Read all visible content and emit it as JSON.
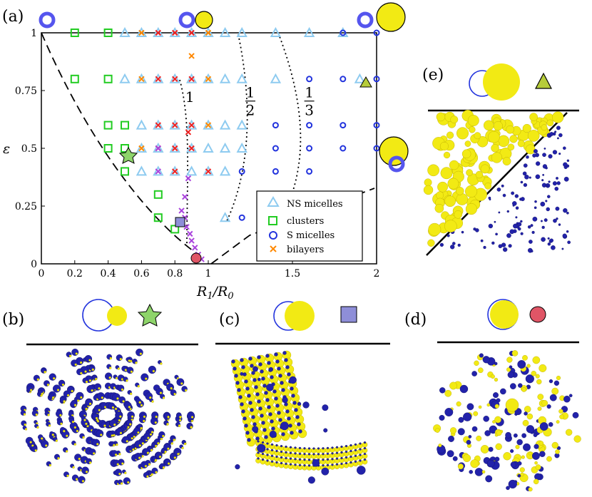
{
  "panels": [
    "(a)",
    "(b)",
    "(c)",
    "(d)",
    "(e)"
  ],
  "colors": {
    "ns": "#8ecbf0",
    "clusters": "#22cc22",
    "s": "#2233dd",
    "bilayers": "#ff8800",
    "cross_red": "#ee2222",
    "cross_purple": "#aa44dd",
    "sphere_yellow": "#f2ea14",
    "sphere_blue": "#2222aa",
    "star": "#8ed46a",
    "square": "#8e8ed8",
    "dot": "#e05566",
    "triangle": "#b6cc3a",
    "ring": "#5555ee"
  },
  "chart_data": {
    "type": "scatter",
    "xlabel": "R_1/R_0",
    "ylabel": "ε",
    "xlim": [
      0,
      2
    ],
    "ylim": [
      0,
      1
    ],
    "xticks": [
      "0",
      "0.2",
      "0.4",
      "0.6",
      "0.8",
      "1",
      "1.5",
      "2"
    ],
    "xtick_values": [
      0,
      0.2,
      0.4,
      0.6,
      0.8,
      1,
      1.5,
      2
    ],
    "yticks": [
      "0",
      "0.25",
      "0.5",
      "0.75",
      "1"
    ],
    "ytick_values": [
      0,
      0.25,
      0.5,
      0.75,
      1
    ],
    "legend": {
      "placement": "bottom-right",
      "entries": [
        "NS micelles",
        "clusters",
        "S micelles",
        "bilayers"
      ]
    },
    "contour_labels": [
      {
        "num": "1",
        "den": "",
        "x": 0.89,
        "y": 0.7
      },
      {
        "num": "1",
        "den": "2",
        "x": 1.25,
        "y": 0.72
      },
      {
        "num": "1",
        "den": "3",
        "x": 1.6,
        "y": 0.72
      }
    ],
    "series": [
      {
        "name": "NS micelles",
        "marker": "triangle",
        "points": [
          [
            0.5,
            1
          ],
          [
            0.6,
            1
          ],
          [
            0.7,
            1
          ],
          [
            0.8,
            1
          ],
          [
            0.9,
            1
          ],
          [
            1,
            1
          ],
          [
            1.1,
            1
          ],
          [
            1.2,
            1
          ],
          [
            1.4,
            1
          ],
          [
            1.6,
            1
          ],
          [
            1.8,
            1
          ],
          [
            0.5,
            0.8
          ],
          [
            0.6,
            0.8
          ],
          [
            0.7,
            0.8
          ],
          [
            0.8,
            0.8
          ],
          [
            0.9,
            0.8
          ],
          [
            1,
            0.8
          ],
          [
            1.1,
            0.8
          ],
          [
            1.2,
            0.8
          ],
          [
            1.4,
            0.8
          ],
          [
            0.6,
            0.6
          ],
          [
            0.7,
            0.6
          ],
          [
            0.8,
            0.6
          ],
          [
            0.9,
            0.6
          ],
          [
            1,
            0.6
          ],
          [
            1.1,
            0.6
          ],
          [
            1.2,
            0.6
          ],
          [
            0.6,
            0.5
          ],
          [
            0.7,
            0.5
          ],
          [
            0.8,
            0.5
          ],
          [
            0.9,
            0.5
          ],
          [
            1,
            0.5
          ],
          [
            1.1,
            0.5
          ],
          [
            1.2,
            0.5
          ],
          [
            0.6,
            0.4
          ],
          [
            0.7,
            0.4
          ],
          [
            0.8,
            0.4
          ],
          [
            0.9,
            0.4
          ],
          [
            1,
            0.4
          ],
          [
            1.1,
            0.4
          ],
          [
            1.1,
            0.2
          ],
          [
            1.9,
            0.8
          ]
        ]
      },
      {
        "name": "clusters",
        "marker": "square",
        "points": [
          [
            0.2,
            1
          ],
          [
            0.4,
            1
          ],
          [
            0.2,
            0.8
          ],
          [
            0.4,
            0.8
          ],
          [
            0.4,
            0.6
          ],
          [
            0.5,
            0.6
          ],
          [
            0.4,
            0.5
          ],
          [
            0.5,
            0.5
          ],
          [
            0.5,
            0.4
          ],
          [
            0.7,
            0.3
          ],
          [
            0.7,
            0.2
          ],
          [
            0.8,
            0.15
          ]
        ]
      },
      {
        "name": "S micelles",
        "marker": "circle",
        "points": [
          [
            1.8,
            1
          ],
          [
            2,
            1
          ],
          [
            1.6,
            0.8
          ],
          [
            1.8,
            0.8
          ],
          [
            2,
            0.8
          ],
          [
            2,
            0.6
          ],
          [
            1.4,
            0.6
          ],
          [
            1.6,
            0.6
          ],
          [
            1.8,
            0.6
          ],
          [
            1.4,
            0.5
          ],
          [
            1.6,
            0.5
          ],
          [
            1.8,
            0.5
          ],
          [
            2,
            0.5
          ],
          [
            1.2,
            0.4
          ],
          [
            1.4,
            0.4
          ],
          [
            1.6,
            0.4
          ],
          [
            1.2,
            0.2
          ]
        ]
      },
      {
        "name": "bilayers",
        "marker": "cross",
        "points": [
          [
            0.6,
            1
          ],
          [
            1,
            1
          ],
          [
            0.6,
            0.8
          ],
          [
            1,
            0.8
          ],
          [
            0.6,
            0.5
          ],
          [
            1,
            0.6
          ],
          [
            0.9,
            0.9
          ]
        ]
      },
      {
        "name": "",
        "marker": "cross-red",
        "points": [
          [
            0.7,
            1
          ],
          [
            0.8,
            1
          ],
          [
            0.9,
            1
          ],
          [
            0.7,
            0.8
          ],
          [
            0.8,
            0.8
          ],
          [
            0.9,
            0.8
          ],
          [
            0.7,
            0.6
          ],
          [
            0.8,
            0.6
          ],
          [
            0.9,
            0.6
          ],
          [
            0.7,
            0.5
          ],
          [
            0.8,
            0.5
          ],
          [
            0.9,
            0.5
          ],
          [
            0.8,
            0.4
          ],
          [
            1,
            0.4
          ],
          [
            0.88,
            0.57
          ]
        ]
      },
      {
        "name": "",
        "marker": "cross-purple",
        "points": [
          [
            0.7,
            0.5
          ],
          [
            0.7,
            0.4
          ],
          [
            0.88,
            0.37
          ],
          [
            0.86,
            0.29
          ],
          [
            0.84,
            0.23
          ],
          [
            0.86,
            0.2
          ],
          [
            0.87,
            0.16
          ],
          [
            0.89,
            0.13
          ],
          [
            0.9,
            0.1
          ],
          [
            0.92,
            0.07
          ],
          [
            0.94,
            0.04
          ],
          [
            0.96,
            0.02
          ]
        ]
      }
    ]
  }
}
